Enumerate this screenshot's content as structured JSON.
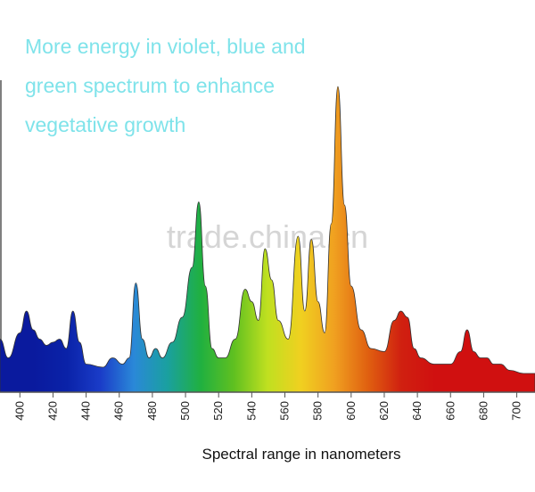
{
  "chart_data": {
    "type": "area",
    "annotation": [
      "More energy in violet, blue and",
      "green spectrum to enhance",
      "vegetative growth"
    ],
    "watermark": "trade.china.cn",
    "x_label": "Spectral range in nanometers",
    "x": [
      388,
      393,
      400,
      404,
      408,
      412,
      416,
      420,
      424,
      428,
      432,
      436,
      440,
      450,
      456,
      462,
      466,
      470,
      474,
      478,
      482,
      486,
      492,
      498,
      504,
      508,
      512,
      516,
      520,
      524,
      530,
      536,
      540,
      544,
      548,
      552,
      556,
      562,
      568,
      572,
      576,
      580,
      584,
      588,
      592,
      596,
      600,
      606,
      612,
      620,
      626,
      630,
      634,
      638,
      642,
      650,
      660,
      666,
      670,
      674,
      678,
      682,
      686,
      690,
      696,
      704,
      711
    ],
    "values": [
      17,
      11,
      19,
      26,
      20,
      17,
      15,
      16,
      17,
      14,
      26,
      16,
      9,
      8,
      11,
      9,
      11,
      35,
      17,
      11,
      14,
      11,
      16,
      24,
      40,
      61,
      34,
      14,
      11,
      11,
      17,
      33,
      29,
      23,
      46,
      36,
      23,
      17,
      50,
      26,
      49,
      29,
      19,
      54,
      98,
      60,
      34,
      20,
      14,
      13,
      23,
      26,
      24,
      14,
      11,
      9,
      9,
      13,
      20,
      13,
      11,
      11,
      9,
      9,
      7,
      6,
      6
    ],
    "colors": [
      "#0a1a9e",
      "#0a1a9e",
      "#0a22a8",
      "#1a3cc8",
      "#2a88d8",
      "#1aa0a0",
      "#20b040",
      "#60c020",
      "#c0e020",
      "#f0d020",
      "#f0a020",
      "#e06010",
      "#d02010",
      "#d01010",
      "#d01010",
      "#d01010",
      "#d01010"
    ],
    "xlim": [
      388,
      711
    ],
    "ylim": [
      0,
      100
    ],
    "xticks": [
      400,
      420,
      440,
      460,
      480,
      500,
      520,
      540,
      560,
      580,
      600,
      620,
      640,
      660,
      680,
      700
    ]
  }
}
